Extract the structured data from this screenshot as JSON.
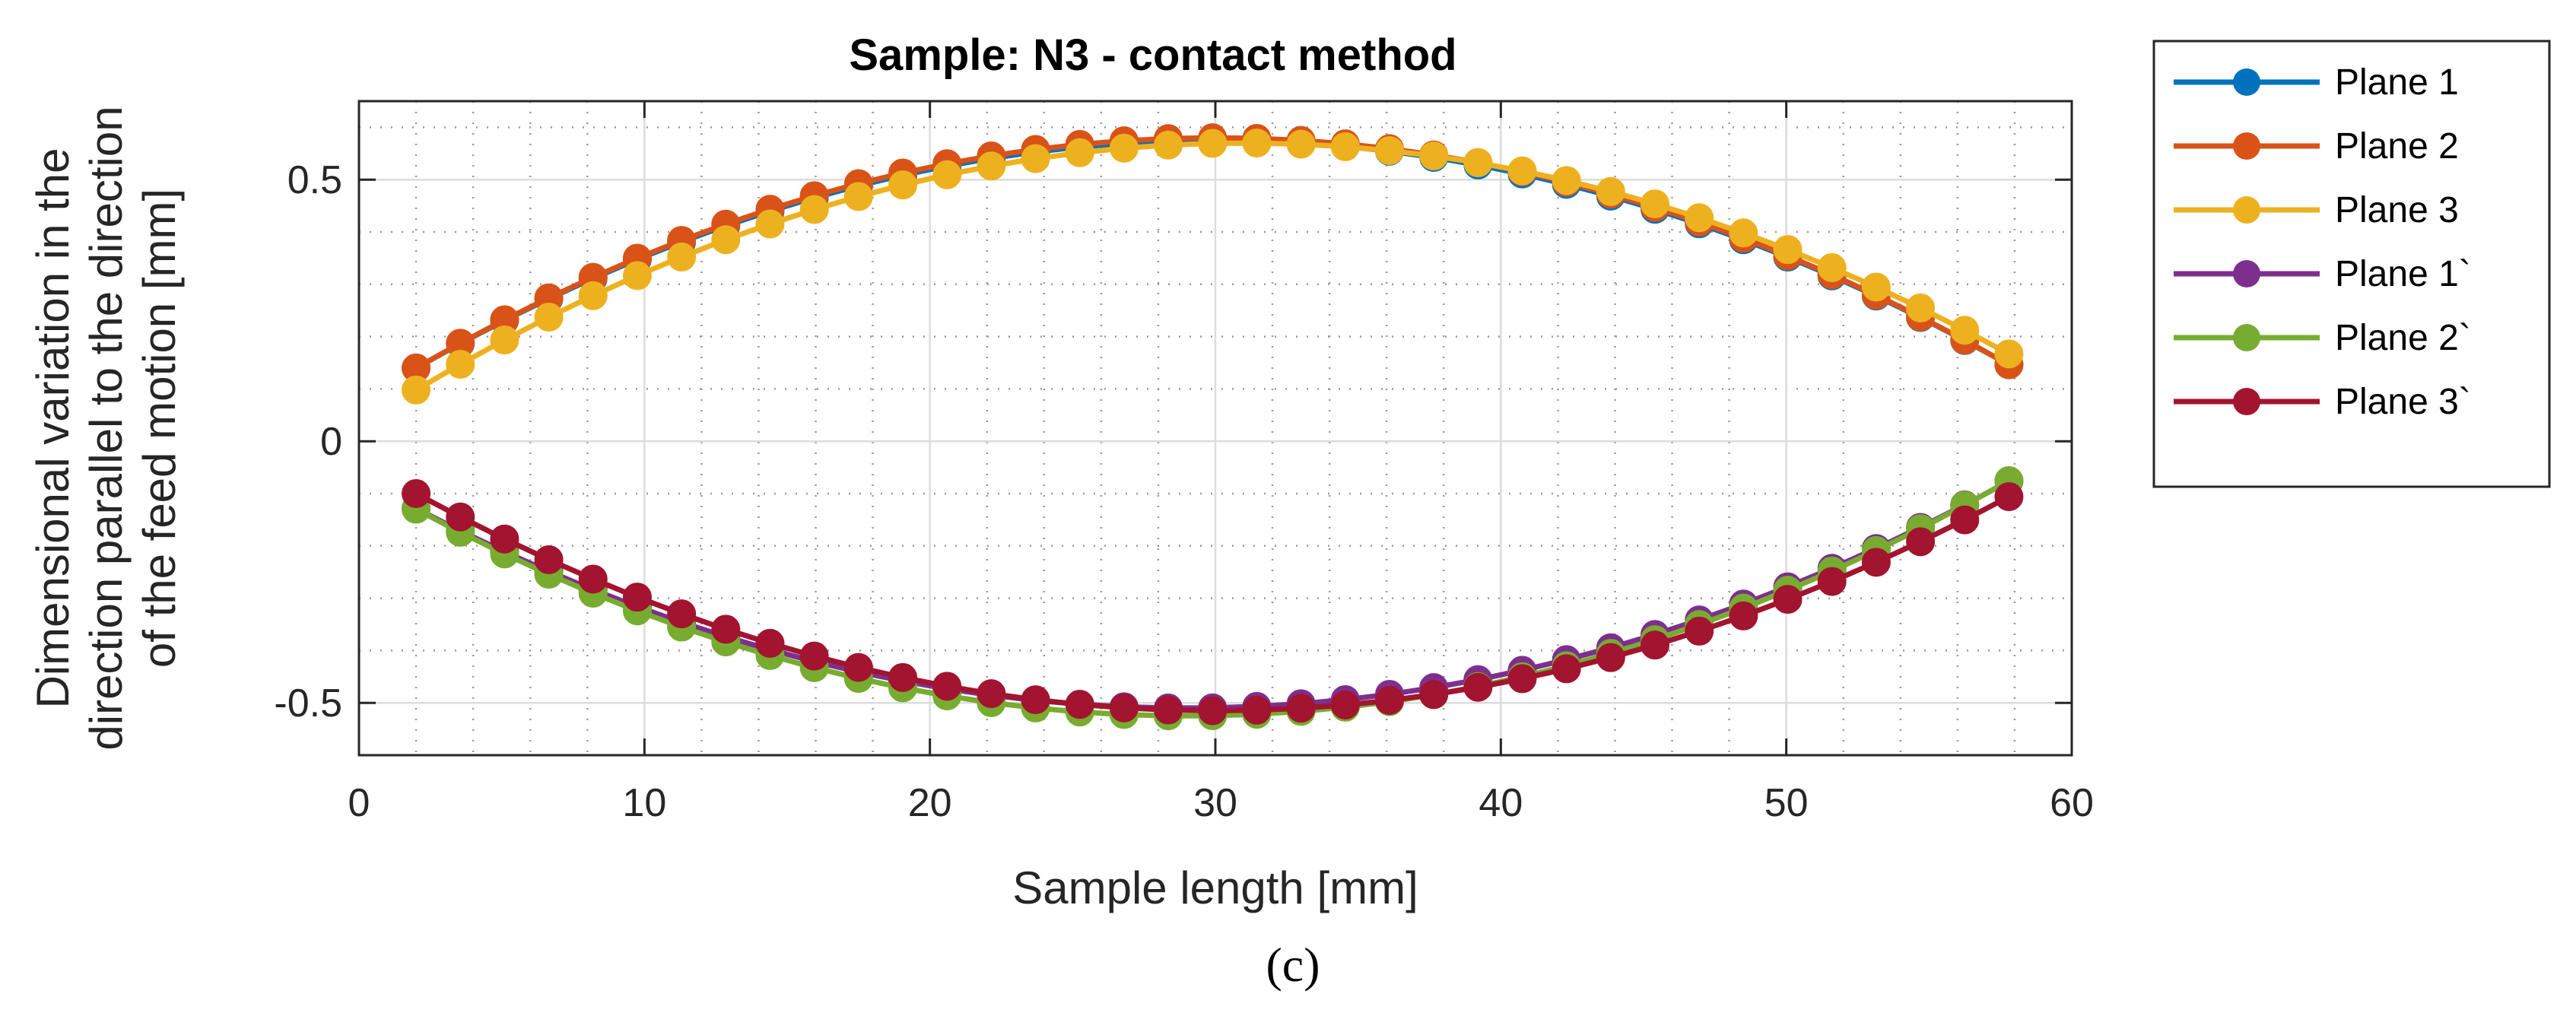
{
  "chart_data": {
    "type": "line",
    "title": "Sample: N3 - contact method",
    "xlabel": "Sample length [mm]",
    "ylabel_lines": [
      "Dimensional variation in the",
      "direction parallel to the direction",
      "of the feed motion [mm]"
    ],
    "xlim": [
      0,
      60
    ],
    "ylim": [
      -0.6,
      0.65
    ],
    "xticks": [
      0,
      10,
      20,
      30,
      40,
      50,
      60
    ],
    "yticks": [
      -0.5,
      0,
      0.5
    ],
    "ytick_labels": [
      "-0.5",
      "0",
      "0.5"
    ],
    "grid": true,
    "minor_grid": true,
    "legend_position": "outside-right",
    "panel_label": "(c)",
    "x_start": 2,
    "x_step": 1.55,
    "n_points": 37,
    "series": [
      {
        "name": "Plane 1",
        "color": "#0072BD",
        "y_center": 0.575,
        "x_center": 30,
        "half_width": 28,
        "y_end": 0.14
      },
      {
        "name": "Plane 2",
        "color": "#D95319",
        "y_center": 0.58,
        "x_center": 30,
        "half_width": 28,
        "y_end": 0.14
      },
      {
        "name": "Plane 3",
        "color": "#EDB120",
        "y_center": 0.57,
        "x_center": 31,
        "half_width": 28,
        "y_end": 0.13
      },
      {
        "name": "Plane 1`",
        "color": "#7E2F8E",
        "y_center": -0.51,
        "x_center": 29,
        "half_width": 28,
        "y_end": -0.1
      },
      {
        "name": "Plane 2`",
        "color": "#77AC30",
        "y_center": -0.525,
        "x_center": 29,
        "half_width": 28,
        "y_end": -0.1
      },
      {
        "name": "Plane 3`",
        "color": "#A2142F",
        "y_center": -0.515,
        "x_center": 30,
        "half_width": 28,
        "y_end": -0.1
      }
    ]
  }
}
